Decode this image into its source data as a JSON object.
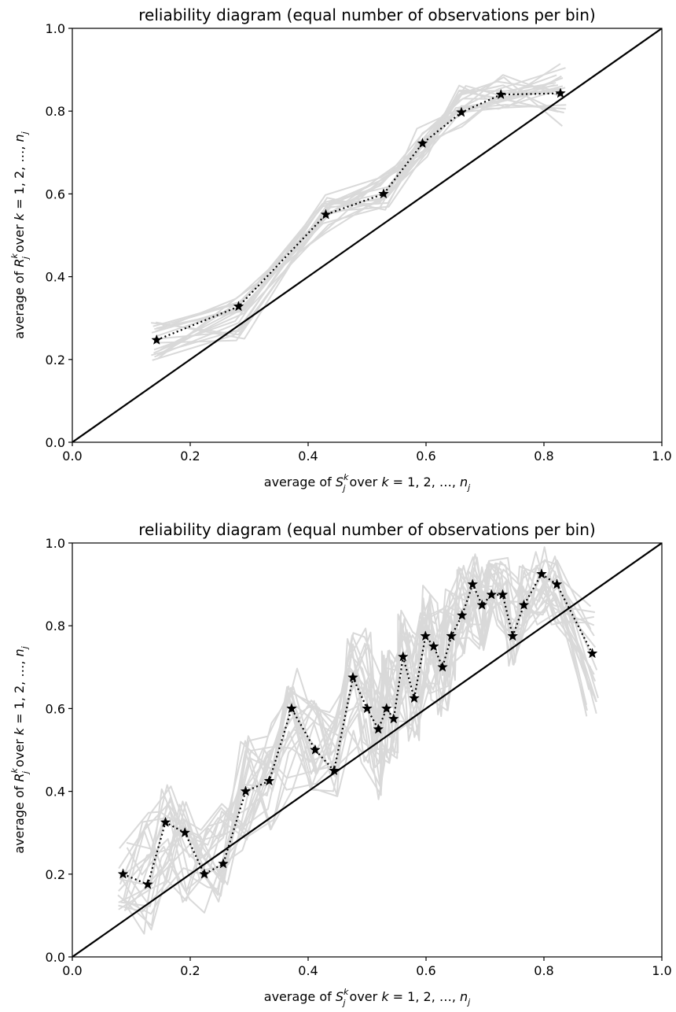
{
  "chart_data": [
    {
      "type": "line",
      "title": "reliability diagram (equal number of observations per bin)",
      "xlabel": "average of  S_j^k  over k = 1, 2, …, n_j",
      "ylabel": "average of  R_j^k  over k = 1, 2, …, n_j",
      "xlabel_parts": [
        "average of ",
        "S",
        "j",
        "k",
        " over ",
        "k",
        " = 1, 2, …, ",
        "n",
        "j"
      ],
      "ylabel_parts": [
        "average of ",
        "R",
        "j",
        "k",
        " over ",
        "k",
        " = 1, 2, …, ",
        "n",
        "j"
      ],
      "xlim": [
        0.0,
        1.0
      ],
      "ylim": [
        0.0,
        1.0
      ],
      "xticks": [
        "0.0",
        "0.2",
        "0.4",
        "0.6",
        "0.8",
        "1.0"
      ],
      "yticks": [
        "0.0",
        "0.2",
        "0.4",
        "0.6",
        "0.8",
        "1.0"
      ],
      "grid": false,
      "diagonal": [
        [
          0,
          0
        ],
        [
          1,
          1
        ]
      ],
      "series": [
        {
          "style": "black dotted with star markers",
          "x": [
            0.143,
            0.282,
            0.43,
            0.528,
            0.594,
            0.66,
            0.727,
            0.828
          ],
          "y": [
            0.247,
            0.328,
            0.55,
            0.6,
            0.722,
            0.797,
            0.84,
            0.843
          ]
        }
      ],
      "background_bands": {
        "color": "#d9d9d9",
        "count": 20,
        "x": [
          0.143,
          0.282,
          0.43,
          0.528,
          0.594,
          0.66,
          0.727,
          0.828
        ],
        "low": [
          0.185,
          0.245,
          0.5,
          0.56,
          0.67,
          0.76,
          0.8,
          0.76
        ],
        "high": [
          0.32,
          0.36,
          0.6,
          0.665,
          0.76,
          0.87,
          0.89,
          0.915
        ]
      }
    },
    {
      "type": "line",
      "title": "reliability diagram (equal number of observations per bin)",
      "xlabel": "average of  S_j^k  over k = 1, 2, …, n_j",
      "ylabel": "average of  R_j^k  over k = 1, 2, …, n_j",
      "xlabel_parts": [
        "average of ",
        "S",
        "j",
        "k",
        " over ",
        "k",
        " = 1, 2, …, ",
        "n",
        "j"
      ],
      "ylabel_parts": [
        "average of ",
        "R",
        "j",
        "k",
        " over ",
        "k",
        " = 1, 2, …, ",
        "n",
        "j"
      ],
      "xlim": [
        0.0,
        1.0
      ],
      "ylim": [
        0.0,
        1.0
      ],
      "xticks": [
        "0.0",
        "0.2",
        "0.4",
        "0.6",
        "0.8",
        "1.0"
      ],
      "yticks": [
        "0.0",
        "0.2",
        "0.4",
        "0.6",
        "0.8",
        "1.0"
      ],
      "grid": false,
      "diagonal": [
        [
          0,
          0
        ],
        [
          1,
          1
        ]
      ],
      "series": [
        {
          "style": "black dotted with star markers",
          "x": [
            0.086,
            0.128,
            0.158,
            0.191,
            0.224,
            0.256,
            0.294,
            0.334,
            0.372,
            0.412,
            0.444,
            0.476,
            0.5,
            0.519,
            0.533,
            0.545,
            0.561,
            0.58,
            0.599,
            0.613,
            0.628,
            0.643,
            0.661,
            0.679,
            0.695,
            0.711,
            0.73,
            0.747,
            0.766,
            0.796,
            0.822,
            0.882
          ],
          "y": [
            0.2,
            0.175,
            0.325,
            0.3,
            0.2,
            0.225,
            0.4,
            0.425,
            0.6,
            0.5,
            0.45,
            0.675,
            0.6,
            0.55,
            0.6,
            0.575,
            0.725,
            0.625,
            0.775,
            0.75,
            0.7,
            0.775,
            0.825,
            0.9,
            0.85,
            0.875,
            0.875,
            0.775,
            0.85,
            0.925,
            0.9,
            0.733
          ]
        }
      ],
      "background_bands": {
        "color": "#d9d9d9",
        "count": 22,
        "x": [
          0.086,
          0.128,
          0.158,
          0.191,
          0.224,
          0.256,
          0.294,
          0.334,
          0.372,
          0.412,
          0.444,
          0.476,
          0.5,
          0.519,
          0.533,
          0.545,
          0.561,
          0.58,
          0.599,
          0.613,
          0.628,
          0.643,
          0.661,
          0.679,
          0.695,
          0.711,
          0.73,
          0.747,
          0.766,
          0.796,
          0.822,
          0.882
        ],
        "low": [
          0.1,
          0.03,
          0.15,
          0.13,
          0.1,
          0.13,
          0.25,
          0.3,
          0.4,
          0.4,
          0.38,
          0.5,
          0.4,
          0.38,
          0.45,
          0.45,
          0.55,
          0.5,
          0.65,
          0.6,
          0.58,
          0.65,
          0.7,
          0.75,
          0.72,
          0.75,
          0.78,
          0.7,
          0.78,
          0.8,
          0.8,
          0.58
        ],
        "high": [
          0.28,
          0.35,
          0.42,
          0.4,
          0.33,
          0.38,
          0.55,
          0.58,
          0.7,
          0.62,
          0.6,
          0.8,
          0.8,
          0.68,
          0.75,
          0.72,
          0.85,
          0.8,
          0.92,
          0.88,
          0.85,
          0.92,
          0.95,
          0.98,
          0.95,
          0.97,
          0.97,
          0.92,
          0.95,
          1.0,
          0.98,
          0.85
        ]
      }
    }
  ]
}
